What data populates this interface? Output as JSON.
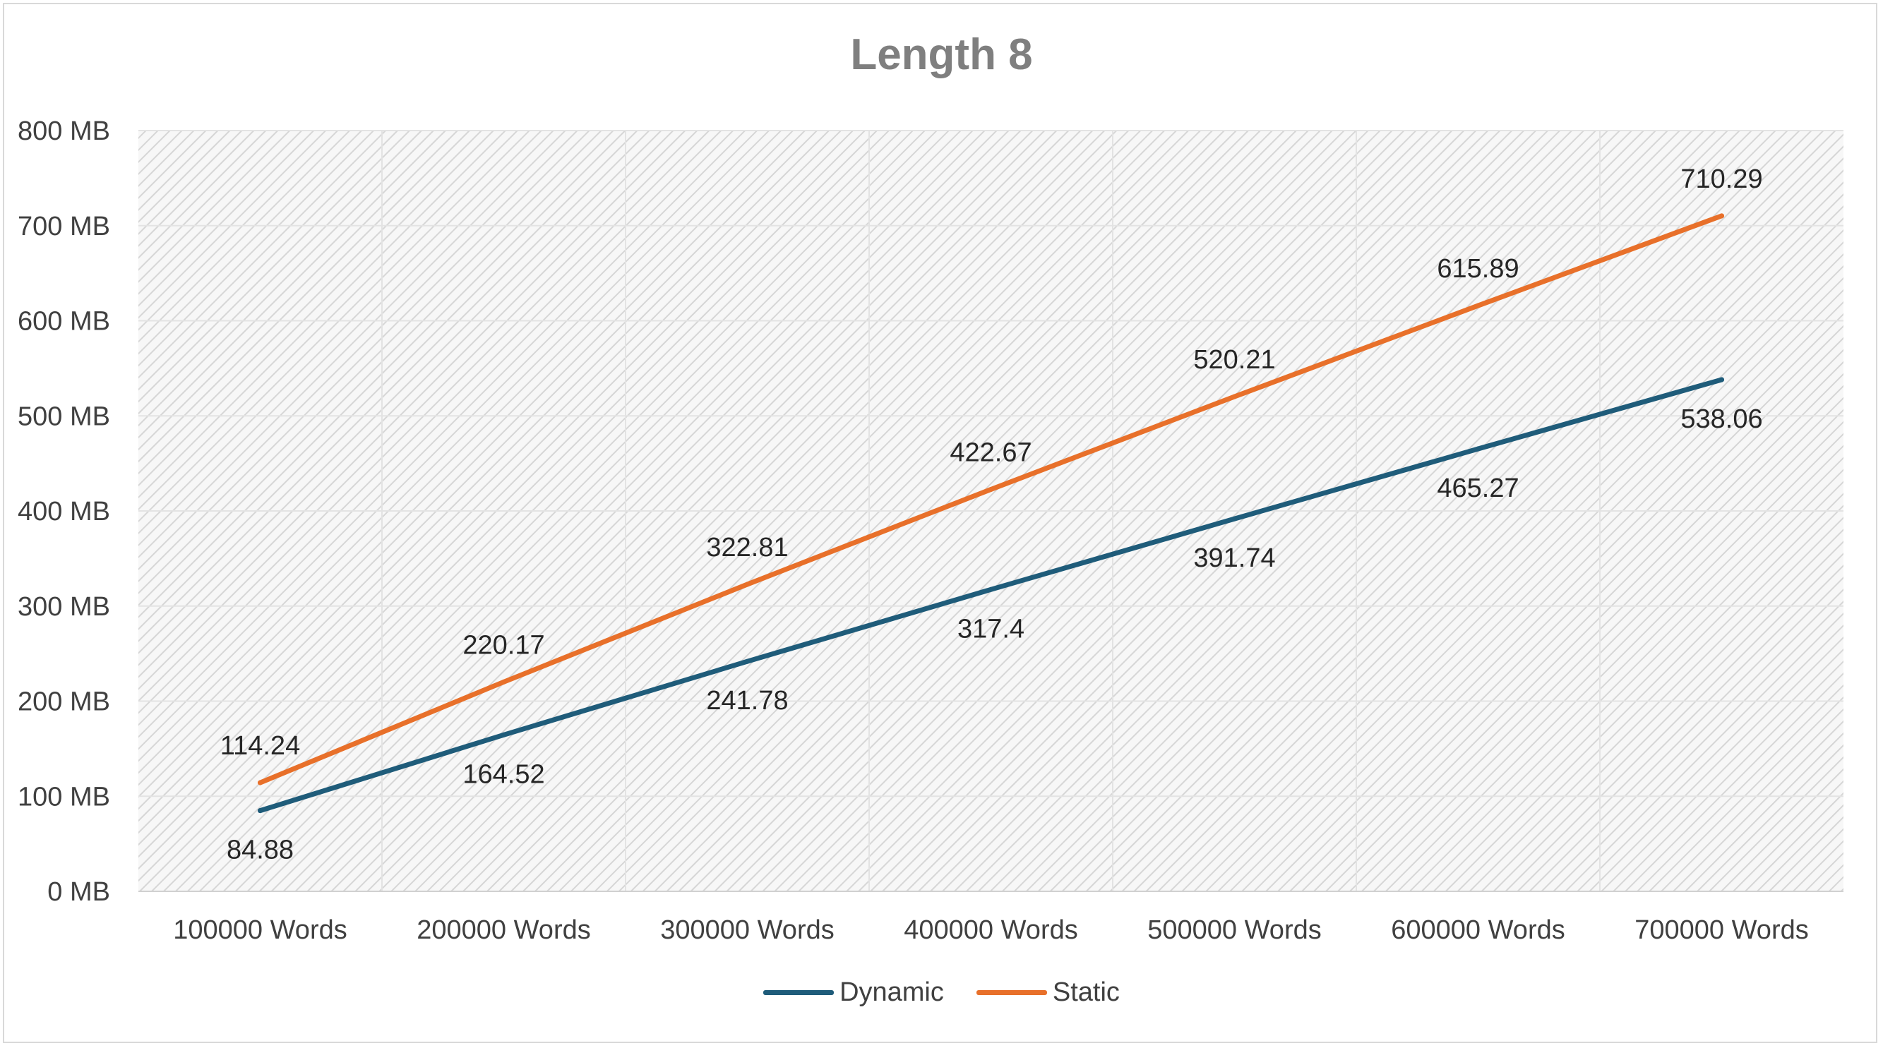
{
  "chart_data": {
    "type": "line",
    "title": "Length 8",
    "xlabel": "",
    "ylabel": "",
    "categories": [
      "100000 Words",
      "200000 Words",
      "300000 Words",
      "400000 Words",
      "500000 Words",
      "600000 Words",
      "700000 Words"
    ],
    "y_ticks": [
      "0 MB",
      "100 MB",
      "200 MB",
      "300 MB",
      "400 MB",
      "500 MB",
      "600 MB",
      "700 MB",
      "800 MB"
    ],
    "ylim": [
      0,
      800
    ],
    "grid": true,
    "legend_position": "bottom",
    "series": [
      {
        "name": "Dynamic",
        "color": "#1f5c7a",
        "values": [
          84.88,
          164.52,
          241.78,
          317.4,
          391.74,
          465.27,
          538.06
        ],
        "labels": [
          "84.88",
          "164.52",
          "241.78",
          "317.4",
          "391.74",
          "465.27",
          "538.06"
        ]
      },
      {
        "name": "Static",
        "color": "#e8702a",
        "values": [
          114.24,
          220.17,
          322.81,
          422.67,
          520.21,
          615.89,
          710.29
        ],
        "labels": [
          "114.24",
          "220.17",
          "322.81",
          "422.67",
          "520.21",
          "615.89",
          "710.29"
        ]
      }
    ]
  }
}
